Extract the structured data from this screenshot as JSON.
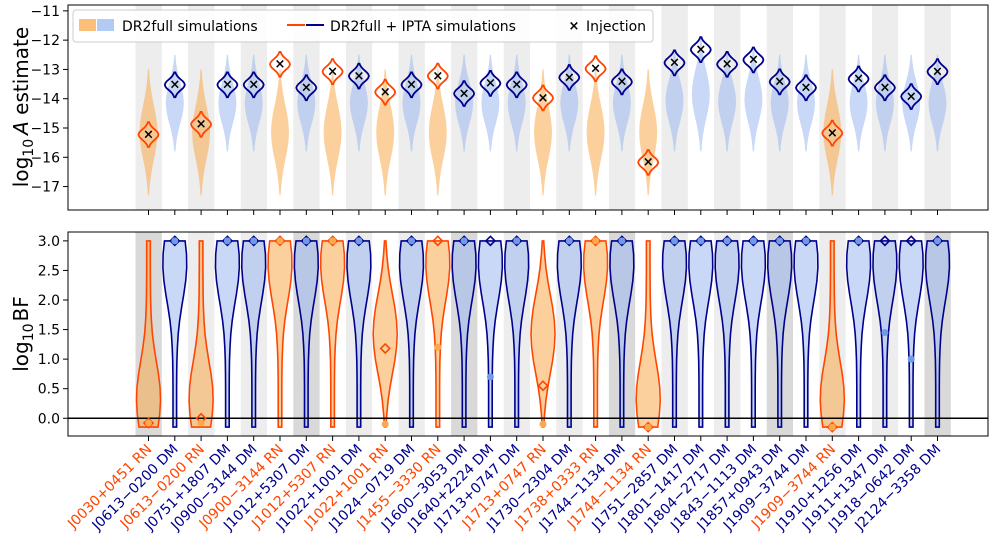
{
  "chart_data": [
    {
      "type": "violin",
      "panel": "top",
      "ylabel": "log$_{10}$A estimate",
      "ylabel_base": "log",
      "ylabel_sub": "10",
      "ylabel_var": "A",
      "ylabel_rest": " estimate",
      "ylim": [
        -17.8,
        -10.8
      ],
      "yticks": [
        -11,
        -12,
        -13,
        -14,
        -15,
        -16,
        -17
      ],
      "ytick_labels": [
        "−11",
        "−12",
        "−13",
        "−14",
        "−15",
        "−16",
        "−17"
      ],
      "legend": {
        "position": "top-left",
        "entries": [
          "DR2full simulations",
          "DR2full + IPTA simulations",
          "Injection"
        ]
      },
      "injection": [
        -15.2,
        -13.5,
        -14.85,
        -13.5,
        -13.5,
        -12.8,
        -13.6,
        -13.05,
        -13.2,
        -13.75,
        -13.5,
        -13.2,
        -13.8,
        -13.45,
        -13.5,
        -13.95,
        -13.25,
        -12.95,
        -13.4,
        -16.15,
        -12.75,
        -12.3,
        -12.8,
        -12.65,
        -13.4,
        -13.6,
        -15.15,
        -13.3,
        -13.6,
        -13.9,
        -13.05
      ]
    },
    {
      "type": "violin",
      "panel": "bottom",
      "ylabel": "log$_{10}$BF",
      "ylabel_base": "log",
      "ylabel_sub": "10",
      "ylabel_rest": "BF",
      "ylim": [
        -0.3,
        3.15
      ],
      "yticks": [
        3.0,
        2.5,
        2.0,
        1.5,
        1.0,
        0.5,
        0.0,
        -0.5
      ],
      "ytick_labels": [
        "3.0",
        "2.5",
        "2.0",
        "1.5",
        "1.0",
        "0.5",
        "0.0"
      ],
      "reference_line": 0.0,
      "bf_median_ipta": [
        -0.08,
        3.0,
        0.0,
        3.0,
        3.0,
        3.0,
        3.0,
        3.0,
        3.0,
        1.18,
        3.0,
        3.0,
        3.0,
        3.0,
        3.0,
        0.55,
        3.0,
        3.0,
        3.0,
        -0.15,
        3.0,
        3.0,
        3.0,
        3.0,
        3.0,
        3.0,
        -0.15,
        3.0,
        3.0,
        3.0,
        3.0
      ],
      "bf_median_dr2full": [
        -0.08,
        3.0,
        -0.08,
        3.0,
        3.0,
        3.0,
        3.0,
        3.0,
        3.0,
        -0.1,
        3.0,
        1.2,
        3.0,
        0.7,
        3.0,
        -0.1,
        3.0,
        3.0,
        3.0,
        -0.15,
        3.0,
        3.0,
        3.0,
        3.0,
        3.0,
        3.0,
        -0.15,
        3.0,
        1.45,
        1.0,
        3.0
      ]
    }
  ],
  "pulsars": [
    {
      "name": "J0030+0451 RN",
      "kind": "RN"
    },
    {
      "name": "J0613−0200 DM",
      "kind": "DM"
    },
    {
      "name": "J0613−0200 RN",
      "kind": "RN"
    },
    {
      "name": "J0751+1807 DM",
      "kind": "DM"
    },
    {
      "name": "J0900−3144 DM",
      "kind": "DM"
    },
    {
      "name": "J0900−3144 RN",
      "kind": "RN"
    },
    {
      "name": "J1012+5307 DM",
      "kind": "DM"
    },
    {
      "name": "J1012+5307 RN",
      "kind": "RN"
    },
    {
      "name": "J1022+1001 DM",
      "kind": "DM"
    },
    {
      "name": "J1022+1001 RN",
      "kind": "RN"
    },
    {
      "name": "J1024−0719 DM",
      "kind": "DM"
    },
    {
      "name": "J1455−3330 RN",
      "kind": "RN"
    },
    {
      "name": "J1600−3053 DM",
      "kind": "DM"
    },
    {
      "name": "J1640+2224 DM",
      "kind": "DM"
    },
    {
      "name": "J1713+0747 DM",
      "kind": "DM"
    },
    {
      "name": "J1713+0747 RN",
      "kind": "RN"
    },
    {
      "name": "J1730−2304 DM",
      "kind": "DM"
    },
    {
      "name": "J1738+0333 RN",
      "kind": "RN"
    },
    {
      "name": "J1744−1134 DM",
      "kind": "DM"
    },
    {
      "name": "J1744−1134 RN",
      "kind": "RN"
    },
    {
      "name": "J1751−2857 DM",
      "kind": "DM"
    },
    {
      "name": "J1801−1417 DM",
      "kind": "DM"
    },
    {
      "name": "J1804−2717 DM",
      "kind": "DM"
    },
    {
      "name": "J1843−1113 DM",
      "kind": "DM"
    },
    {
      "name": "J1857+0943 DM",
      "kind": "DM"
    },
    {
      "name": "J1909−3744 DM",
      "kind": "DM"
    },
    {
      "name": "J1909−3744 RN",
      "kind": "RN"
    },
    {
      "name": "J1910+1256 DM",
      "kind": "DM"
    },
    {
      "name": "J1911+1347 DM",
      "kind": "DM"
    },
    {
      "name": "J1918−0642 DM",
      "kind": "DM"
    },
    {
      "name": "J2124−3358 DM",
      "kind": "DM"
    }
  ],
  "colors": {
    "rn": "#ff4500",
    "dm": "#00008b",
    "rn_fill": "#f9a94c",
    "dm_fill": "#9ab8ee",
    "band_light": "#ededed",
    "band_dark": "#d9d9d9",
    "injection": "#000000"
  }
}
